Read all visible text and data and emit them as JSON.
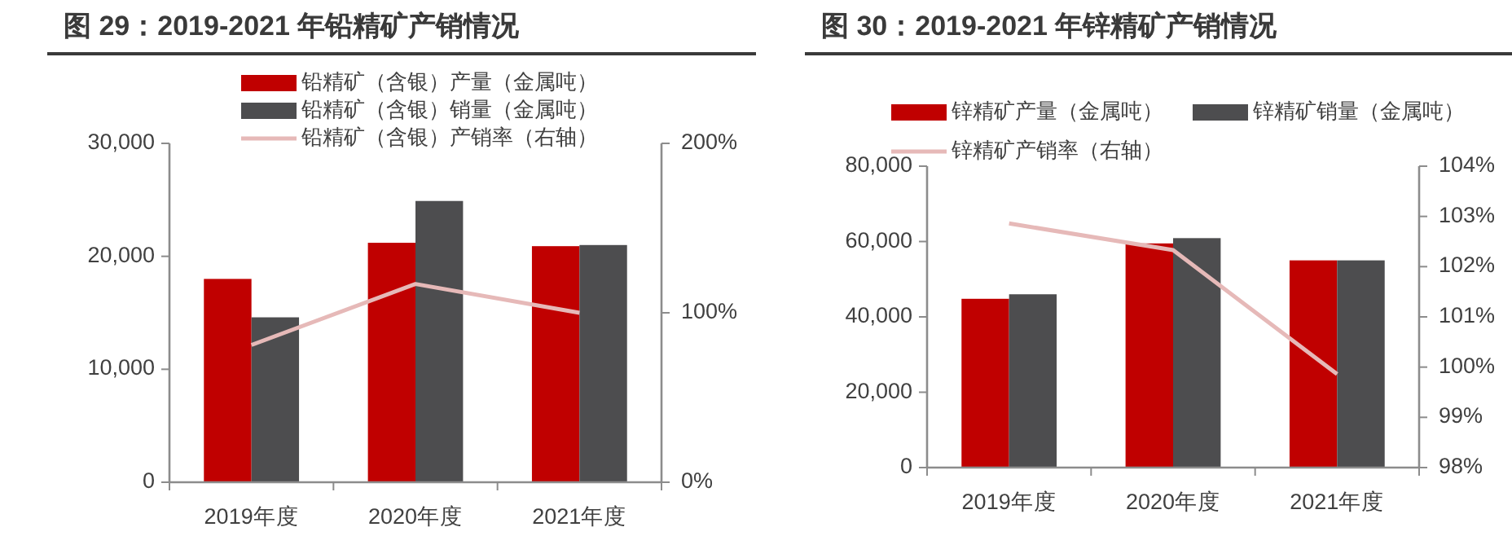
{
  "chart_data": [
    {
      "type": "bar",
      "title": "图 29：2019-2021 年铅精矿产销情况",
      "categories": [
        "2019年度",
        "2020年度",
        "2021年度"
      ],
      "series": [
        {
          "name": "铅精矿（含银）产量（金属吨）",
          "color": "#c00000",
          "values": [
            18000,
            21200,
            20900
          ]
        },
        {
          "name": "铅精矿（含银）销量（金属吨）",
          "color": "#4d4d4f",
          "values": [
            14600,
            24900,
            21000
          ]
        },
        {
          "name": "铅精矿（含银）产销率（右轴）",
          "type": "line",
          "axis": "y2",
          "color": "#e6b9b8",
          "values": [
            81,
            117,
            100
          ]
        }
      ],
      "ylim": [
        0,
        30000
      ],
      "yticks": [
        {
          "value": 0,
          "label": "0"
        },
        {
          "value": 10000,
          "label": "10,000"
        },
        {
          "value": 20000,
          "label": "20,000"
        },
        {
          "value": 30000,
          "label": "30,000"
        }
      ],
      "y2lim": [
        0,
        200
      ],
      "y2ticks": [
        {
          "value": 0,
          "label": "0%"
        },
        {
          "value": 100,
          "label": "100%"
        },
        {
          "value": 200,
          "label": "200%"
        }
      ],
      "legend": "top",
      "grid": false
    },
    {
      "type": "bar",
      "title": "图 30：2019-2021 年锌精矿产销情况",
      "categories": [
        "2019年度",
        "2020年度",
        "2021年度"
      ],
      "series": [
        {
          "name": "锌精矿产量（金属吨）",
          "color": "#c00000",
          "values": [
            44800,
            59500,
            55000
          ]
        },
        {
          "name": "锌精矿销量（金属吨）",
          "color": "#4d4d4f",
          "values": [
            46000,
            60900,
            55000
          ]
        },
        {
          "name": "锌精矿产销率（右轴）",
          "type": "line",
          "axis": "y2",
          "color": "#e6b9b8",
          "values": [
            102.86,
            102.33,
            99.86
          ]
        }
      ],
      "ylim": [
        0,
        80000
      ],
      "yticks": [
        {
          "value": 0,
          "label": "0"
        },
        {
          "value": 20000,
          "label": "20,000"
        },
        {
          "value": 40000,
          "label": "40,000"
        },
        {
          "value": 60000,
          "label": "60,000"
        },
        {
          "value": 80000,
          "label": "80,000"
        }
      ],
      "y2lim": [
        98,
        104
      ],
      "y2ticks": [
        {
          "value": 98,
          "label": "98%"
        },
        {
          "value": 99,
          "label": "99%"
        },
        {
          "value": 100,
          "label": "100%"
        },
        {
          "value": 101,
          "label": "101%"
        },
        {
          "value": 102,
          "label": "102%"
        },
        {
          "value": 103,
          "label": "103%"
        },
        {
          "value": 104,
          "label": "104%"
        }
      ],
      "legend": "top",
      "grid": false
    }
  ]
}
